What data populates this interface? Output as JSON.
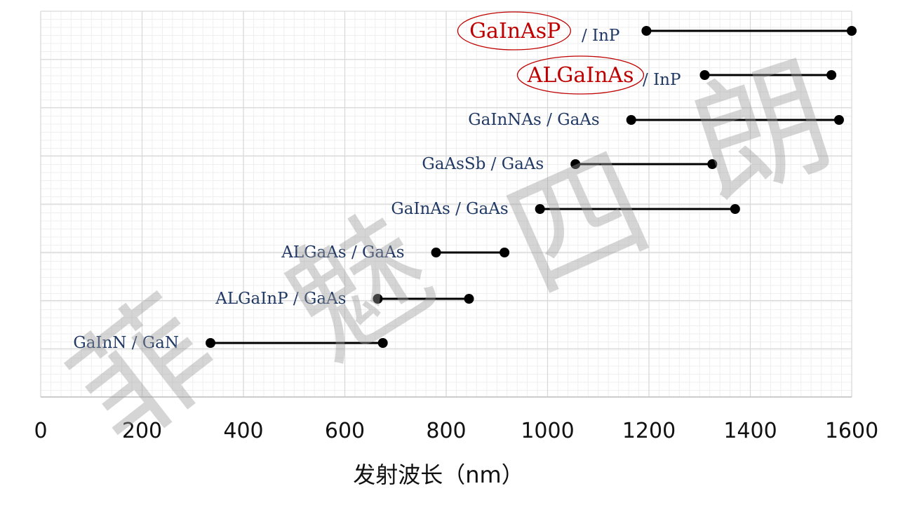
{
  "chart_data": {
    "type": "range",
    "xlabel": "发射波长（nm）",
    "xlim": [
      0,
      1600
    ],
    "xticks": [
      0,
      200,
      400,
      600,
      800,
      1000,
      1200,
      1400,
      1600
    ],
    "grid": true,
    "series": [
      {
        "label_main": "GaInAsP",
        "label_rest": " / InP",
        "min": 1195,
        "max": 1600,
        "highlight": true
      },
      {
        "label_main": "ALGaInAs",
        "label_rest": "/ InP",
        "min": 1310,
        "max": 1560,
        "highlight": true
      },
      {
        "label_main": "GaInNAs / GaAs",
        "label_rest": "",
        "min": 1165,
        "max": 1575,
        "highlight": false
      },
      {
        "label_main": "GaAsSb / GaAs",
        "label_rest": "",
        "min": 1055,
        "max": 1325,
        "highlight": false
      },
      {
        "label_main": "GaInAs / GaAs",
        "label_rest": "",
        "min": 985,
        "max": 1370,
        "highlight": false
      },
      {
        "label_main": "ALGaAs / GaAs",
        "label_rest": "",
        "min": 780,
        "max": 915,
        "highlight": false
      },
      {
        "label_main": "ALGaInP / GaAs",
        "label_rest": "",
        "min": 665,
        "max": 845,
        "highlight": false
      },
      {
        "label_main": "GaInN / GaN",
        "label_rest": "",
        "min": 335,
        "max": 675,
        "highlight": false
      }
    ],
    "colors": {
      "marker": "#000000",
      "label": "#1f3864",
      "highlight": "#c00000",
      "grid_major": "#d9d9d9",
      "grid_minor": "#efefef"
    }
  },
  "watermark": [
    "菲",
    "魅",
    "四",
    "朗"
  ]
}
